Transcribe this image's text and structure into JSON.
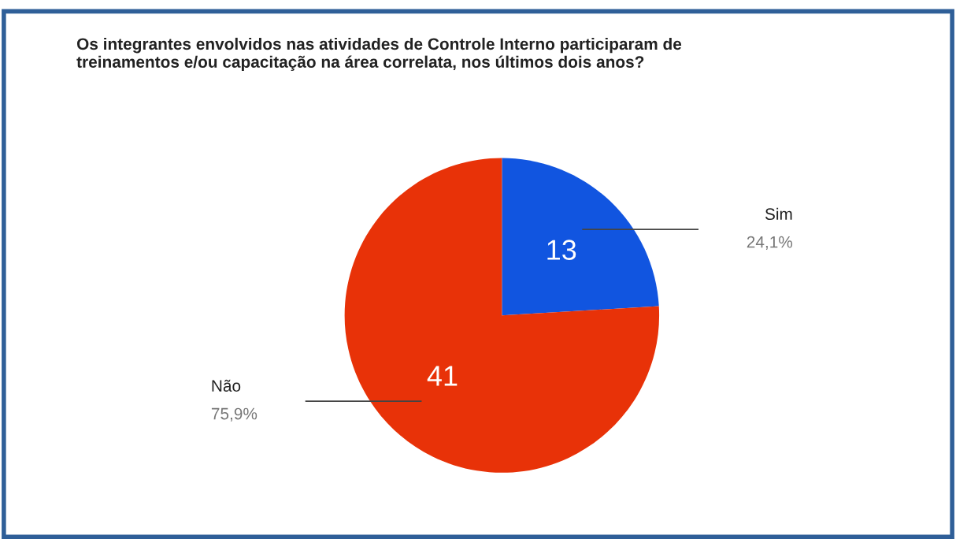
{
  "chart_data": {
    "type": "pie",
    "title": "Os integrantes envolvidos nas atividades de Controle Interno participaram de\ntreinamentos e/ou capacitação na área correlata, nos últimos dois anos?",
    "categories": [
      "Sim",
      "Não"
    ],
    "values": [
      13,
      41
    ],
    "colors": [
      "#1155e0",
      "#e83208"
    ],
    "data_labels": true,
    "annotations": [
      "24,1%",
      "75,9%"
    ],
    "legend": false
  }
}
